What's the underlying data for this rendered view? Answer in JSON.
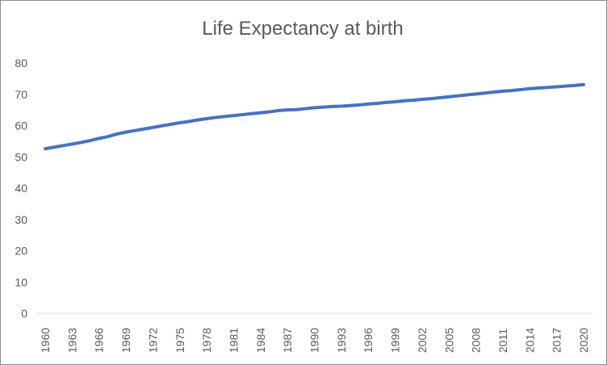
{
  "chart_data": {
    "type": "line",
    "title": "Life Expectancy at birth",
    "xlabel": "",
    "ylabel": "",
    "ylim": [
      0,
      80
    ],
    "y_ticks": [
      0,
      10,
      20,
      30,
      40,
      50,
      60,
      70,
      80
    ],
    "x": [
      1960,
      1961,
      1962,
      1963,
      1964,
      1965,
      1966,
      1967,
      1968,
      1969,
      1970,
      1971,
      1972,
      1973,
      1974,
      1975,
      1976,
      1977,
      1978,
      1979,
      1980,
      1981,
      1982,
      1983,
      1984,
      1985,
      1986,
      1987,
      1988,
      1989,
      1990,
      1991,
      1992,
      1993,
      1994,
      1995,
      1996,
      1997,
      1998,
      1999,
      2000,
      2001,
      2002,
      2003,
      2004,
      2005,
      2006,
      2007,
      2008,
      2009,
      2010,
      2011,
      2012,
      2013,
      2014,
      2015,
      2016,
      2017,
      2018,
      2019,
      2020
    ],
    "x_tick_labels": [
      "1960",
      "1963",
      "1966",
      "1969",
      "1972",
      "1975",
      "1978",
      "1981",
      "1984",
      "1987",
      "1990",
      "1993",
      "1996",
      "1999",
      "2002",
      "2005",
      "2008",
      "2011",
      "2014",
      "2017",
      "2020"
    ],
    "series": [
      {
        "color": "#4472c4",
        "values": [
          52.6,
          53.1,
          53.6,
          54.1,
          54.6,
          55.2,
          55.9,
          56.5,
          57.3,
          57.9,
          58.4,
          58.9,
          59.4,
          59.9,
          60.4,
          60.9,
          61.3,
          61.8,
          62.2,
          62.6,
          62.9,
          63.2,
          63.5,
          63.8,
          64.1,
          64.4,
          64.8,
          65.0,
          65.1,
          65.4,
          65.7,
          65.9,
          66.1,
          66.2,
          66.4,
          66.6,
          66.9,
          67.1,
          67.4,
          67.6,
          67.9,
          68.1,
          68.4,
          68.6,
          68.9,
          69.2,
          69.5,
          69.8,
          70.1,
          70.4,
          70.7,
          71.0,
          71.2,
          71.5,
          71.8,
          72.0,
          72.2,
          72.4,
          72.6,
          72.8,
          73.1
        ]
      }
    ],
    "grid": false,
    "legend": "none"
  }
}
